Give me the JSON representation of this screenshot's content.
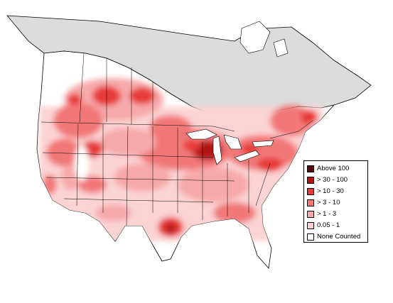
{
  "legend": {
    "items": [
      {
        "label": "Above 100",
        "color": "#5a0c0c"
      },
      {
        "label": "> 30 - 100",
        "color": "#b31212"
      },
      {
        "label": "> 10 - 30",
        "color": "#e83a3a"
      },
      {
        "label": "> 3 - 10",
        "color": "#f27878"
      },
      {
        "label": "> 1 - 3",
        "color": "#f7a9a9"
      },
      {
        "label": "0.05 - 1",
        "color": "#fbd3d3"
      },
      {
        "label": "None Counted",
        "color": "#ffffff"
      }
    ]
  },
  "colors": {
    "no_data": "#dcdcdc",
    "boundary": "#000000"
  }
}
